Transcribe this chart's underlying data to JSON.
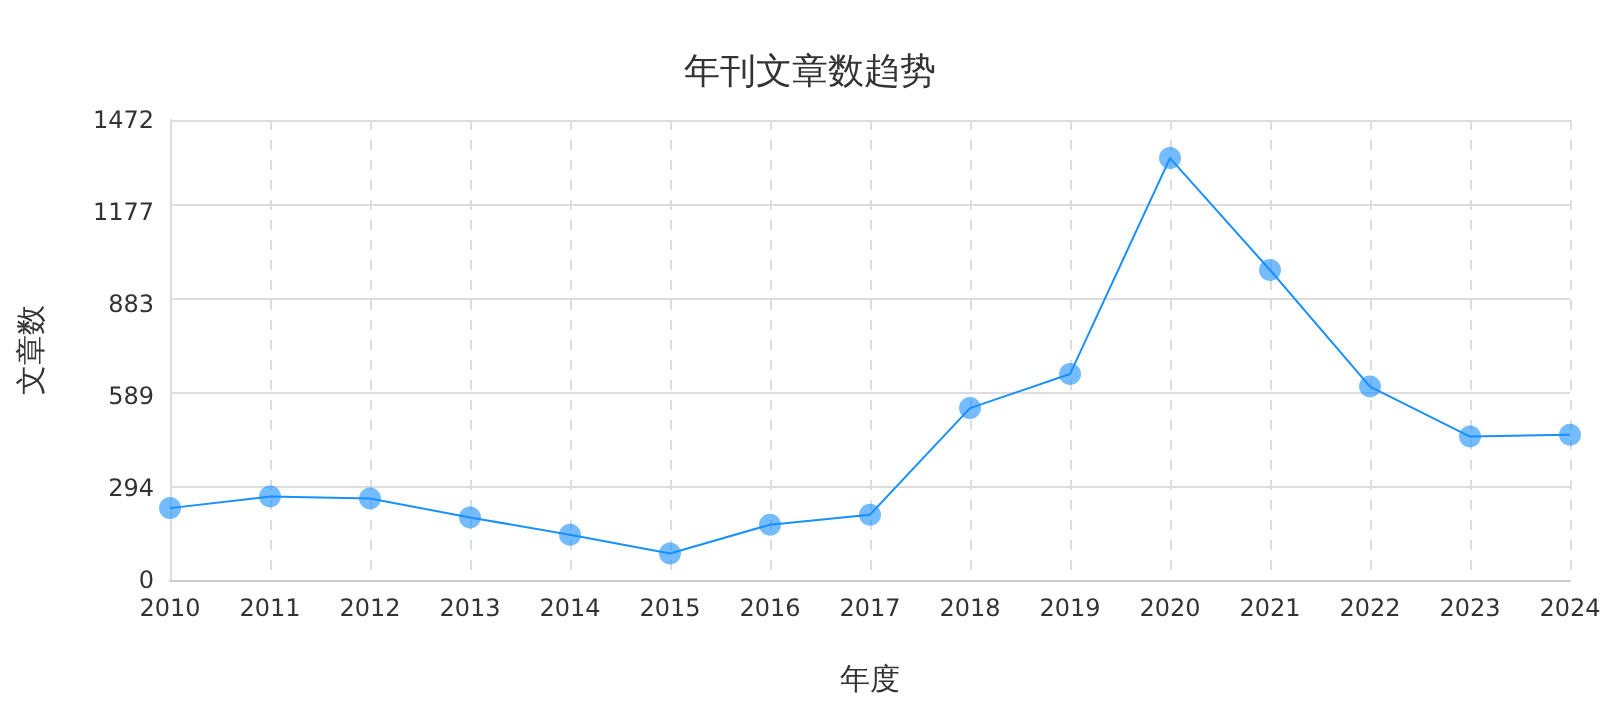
{
  "chart_data": {
    "type": "line",
    "title": "年刊文章数趋势",
    "xlabel": "年度",
    "ylabel": "文章数",
    "categories": [
      "2010",
      "2011",
      "2012",
      "2013",
      "2014",
      "2015",
      "2016",
      "2017",
      "2018",
      "2019",
      "2020",
      "2021",
      "2022",
      "2023",
      "2024"
    ],
    "series": [
      {
        "color": "#1890ff",
        "values": [
          230,
          267,
          261,
          200,
          145,
          85,
          177,
          209,
          550,
          659,
          1350,
          992,
          619,
          459,
          465
        ]
      }
    ],
    "ylim": [
      0,
      1472
    ],
    "yticks": [
      0,
      294,
      589,
      883,
      1177,
      1472
    ],
    "grid": true,
    "marker": "circle",
    "line_style": "solid"
  }
}
